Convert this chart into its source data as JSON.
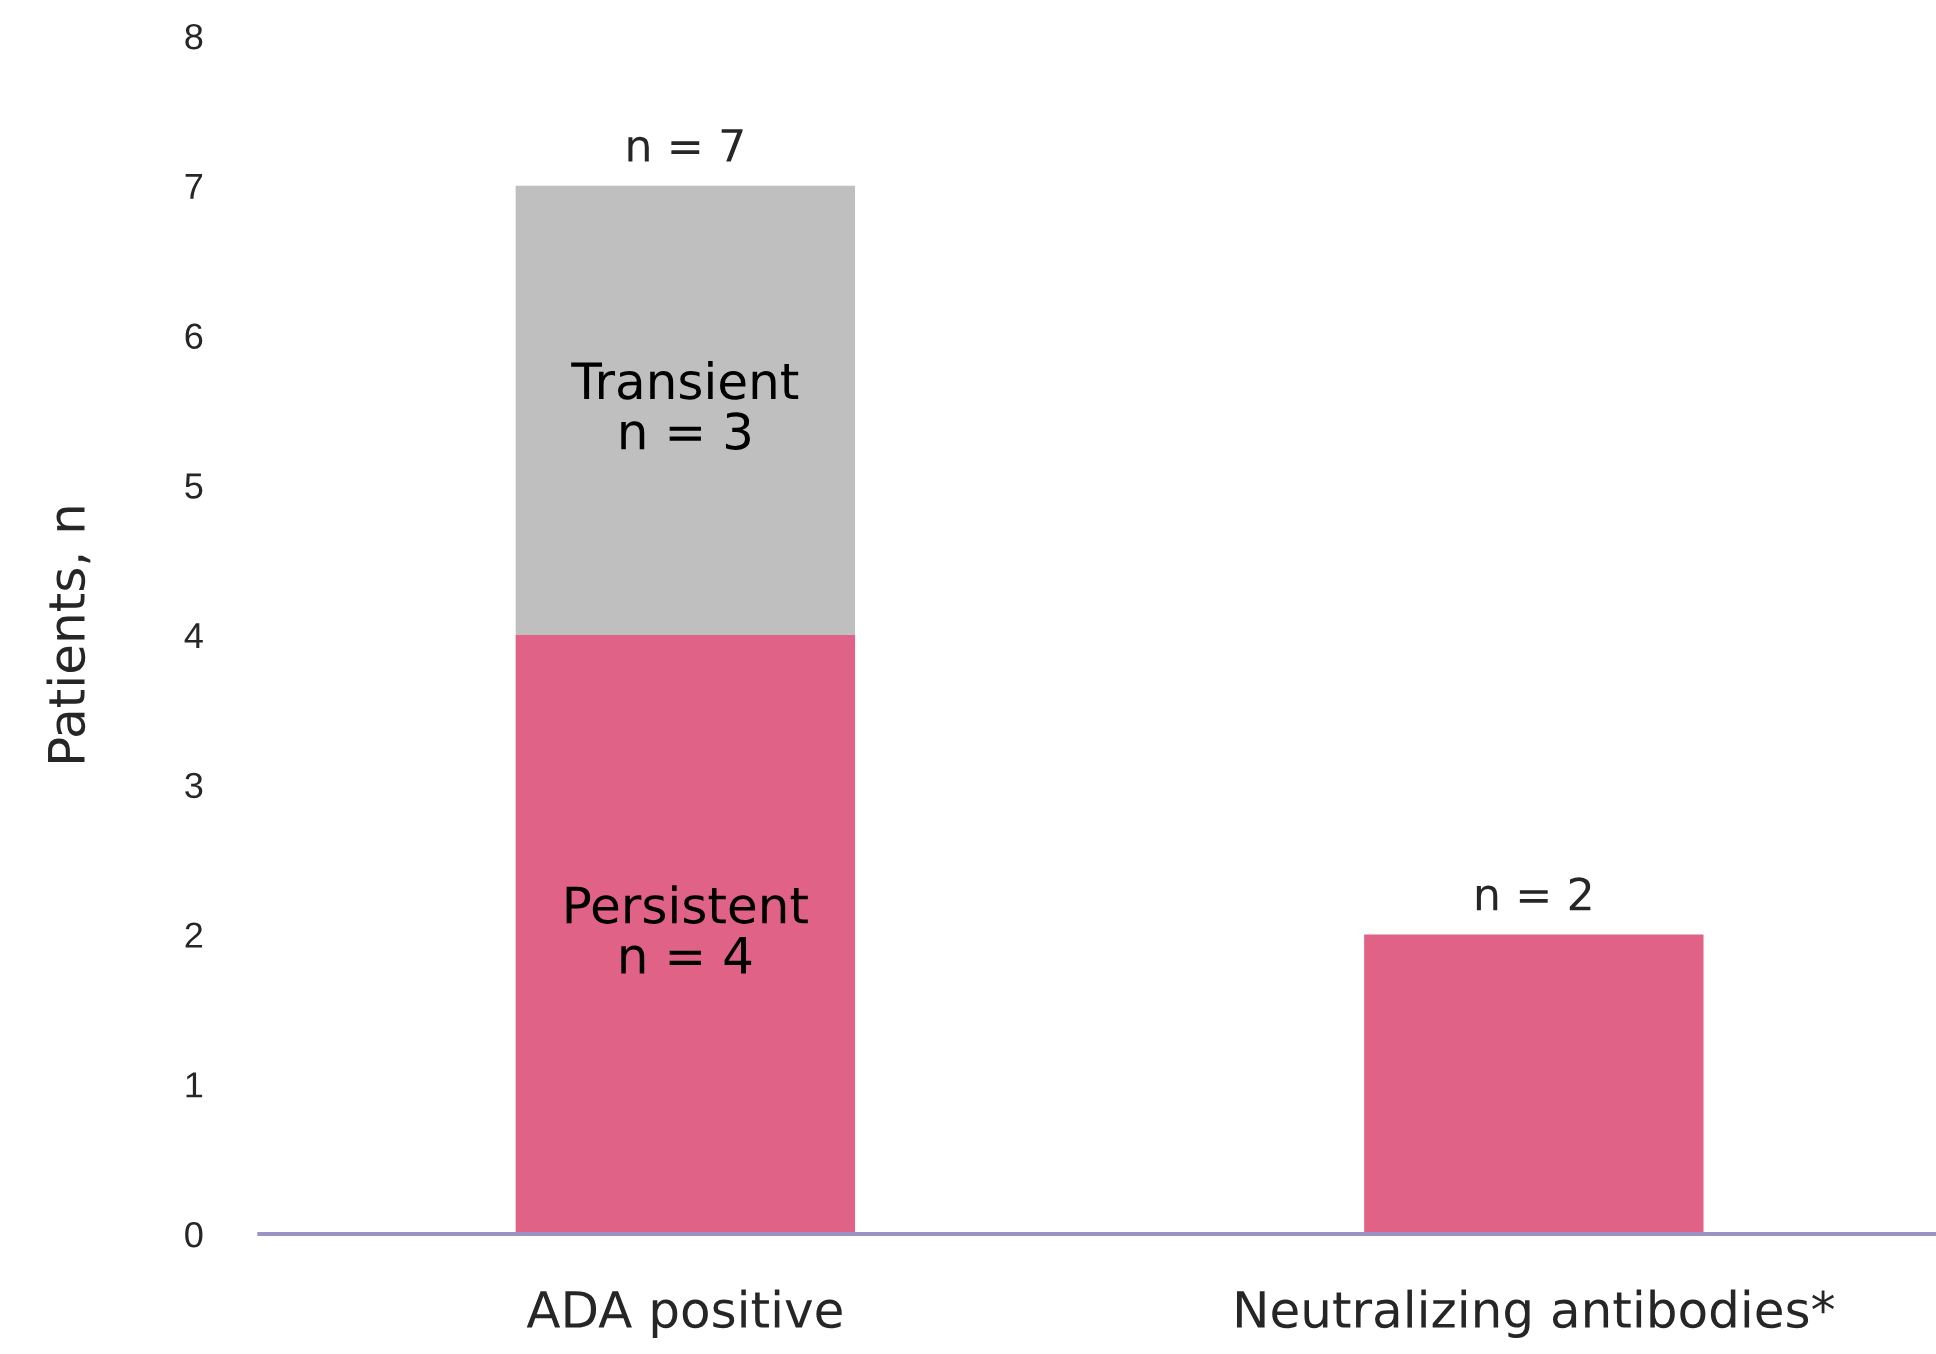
{
  "chart_data": {
    "type": "bar",
    "stacked": true,
    "categories": [
      "ADA positive",
      "Neutralizing antibodies*"
    ],
    "ylabel": "Patients, n",
    "series": [
      {
        "name": "Persistent",
        "color": "#e06287",
        "values": [
          4,
          2
        ],
        "value_labels": [
          "n = 4",
          null
        ]
      },
      {
        "name": "Transient",
        "color": "#bfbfbf",
        "values": [
          3,
          null
        ],
        "value_labels": [
          "n = 3",
          null
        ]
      }
    ],
    "totals": [
      "n = 7",
      "n = 2"
    ],
    "ylim": [
      0,
      8
    ],
    "yticks": [
      0,
      1,
      2,
      3,
      4,
      5,
      6,
      7,
      8
    ],
    "grid": false,
    "legend": false
  }
}
